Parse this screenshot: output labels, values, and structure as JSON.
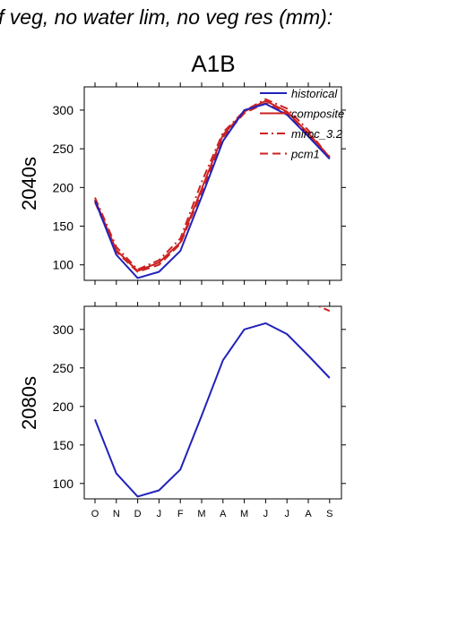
{
  "page": {
    "title": "f veg, no water lim, no veg res (mm):",
    "scenario": "A1B"
  },
  "chart_data": [
    {
      "type": "line",
      "panel_label": "2040s",
      "categories": [
        "O",
        "N",
        "D",
        "J",
        "F",
        "M",
        "A",
        "M",
        "J",
        "J",
        "A",
        "S"
      ],
      "ylim": [
        80,
        330
      ],
      "yticks": [
        100,
        150,
        200,
        250,
        300
      ],
      "grid": false,
      "legend": "top-right",
      "series": [
        {
          "name": "historical",
          "color": "#2222bb",
          "dash": "solid",
          "values": [
            183,
            113,
            83,
            91,
            118,
            188,
            260,
            300,
            308,
            294,
            266,
            237
          ]
        },
        {
          "name": "composite",
          "color": "#cc2222",
          "dash": "solid",
          "values": [
            184,
            119,
            92,
            103,
            129,
            198,
            268,
            298,
            312,
            298,
            270,
            239
          ]
        },
        {
          "name": "miroc_3.2",
          "color": "#cc2222",
          "dash": "dashdot",
          "values": [
            187,
            123,
            94,
            106,
            134,
            207,
            271,
            299,
            314,
            302,
            274,
            238
          ]
        },
        {
          "name": "pcm1",
          "color": "#cc2222",
          "dash": "dash",
          "values": [
            181,
            117,
            91,
            100,
            127,
            194,
            265,
            296,
            309,
            296,
            268,
            240
          ]
        }
      ]
    },
    {
      "type": "line",
      "panel_label": "2080s",
      "categories": [
        "O",
        "N",
        "D",
        "J",
        "F",
        "M",
        "A",
        "M",
        "J",
        "J",
        "A",
        "S"
      ],
      "ylim": [
        80,
        330
      ],
      "yticks": [
        100,
        150,
        200,
        250,
        300
      ],
      "grid": false,
      "series": [
        {
          "name": "historical",
          "color": "#2222bb",
          "dash": "solid",
          "values": [
            183,
            113,
            83,
            91,
            118,
            188,
            260,
            300,
            308,
            294,
            266,
            237
          ]
        },
        {
          "name": "miroc_3.2",
          "color": "#cc2222",
          "dash": "dashdot",
          "values": [
            null,
            null,
            null,
            null,
            null,
            null,
            null,
            null,
            null,
            null,
            336,
            324
          ]
        }
      ]
    }
  ]
}
